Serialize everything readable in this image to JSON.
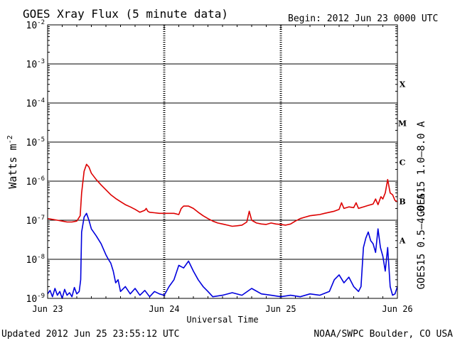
{
  "chart_data": {
    "type": "line",
    "title": "GOES Xray Flux (5 minute data)",
    "begin_label": "Begin:  2012 Jun 23 0000 UTC",
    "xlabel": "Universal Time",
    "ylabel": "Watts m",
    "ylabel_sup": "-2",
    "y_scale": "log",
    "ylim": [
      1e-09,
      0.01
    ],
    "xlim": [
      0,
      72
    ],
    "y_ticks": [
      {
        "base": "10",
        "exp": "-2"
      },
      {
        "base": "10",
        "exp": "-3"
      },
      {
        "base": "10",
        "exp": "-4"
      },
      {
        "base": "10",
        "exp": "-5"
      },
      {
        "base": "10",
        "exp": "-6"
      },
      {
        "base": "10",
        "exp": "-7"
      },
      {
        "base": "10",
        "exp": "-8"
      },
      {
        "base": "10",
        "exp": "-9"
      }
    ],
    "x_ticks": [
      {
        "label": "Jun 23",
        "hours": 0
      },
      {
        "label": "Jun 24",
        "hours": 24
      },
      {
        "label": "Jun 25",
        "hours": 48
      },
      {
        "label": "Jun 26",
        "hours": 72
      }
    ],
    "flare_classes": [
      {
        "label": "X",
        "level": 0.0001
      },
      {
        "label": "M",
        "level": 1e-05
      },
      {
        "label": "C",
        "level": 1e-06
      },
      {
        "label": "B",
        "level": 1e-07
      },
      {
        "label": "A",
        "level": 1e-08
      }
    ],
    "series": [
      {
        "name": "GOES15 1.0–8.0 A",
        "color": "#dd0000",
        "points": [
          [
            0,
            1.1e-07
          ],
          [
            1,
            1.05e-07
          ],
          [
            2,
            1e-07
          ],
          [
            3,
            9.5e-08
          ],
          [
            4,
            9e-08
          ],
          [
            5,
            9e-08
          ],
          [
            6,
            9.5e-08
          ],
          [
            6.7,
            1.3e-07
          ],
          [
            7,
            5e-07
          ],
          [
            7.5,
            1.8e-06
          ],
          [
            8,
            2.7e-06
          ],
          [
            8.5,
            2.3e-06
          ],
          [
            9,
            1.6e-06
          ],
          [
            10,
            1.1e-06
          ],
          [
            11,
            8e-07
          ],
          [
            12,
            6e-07
          ],
          [
            13,
            4.5e-07
          ],
          [
            14,
            3.6e-07
          ],
          [
            15,
            3e-07
          ],
          [
            16,
            2.5e-07
          ],
          [
            17,
            2.2e-07
          ],
          [
            18,
            1.9e-07
          ],
          [
            19,
            1.6e-07
          ],
          [
            20,
            1.8e-07
          ],
          [
            20.3,
            2e-07
          ],
          [
            20.6,
            1.7e-07
          ],
          [
            21,
            1.6e-07
          ],
          [
            22,
            1.55e-07
          ],
          [
            23,
            1.5e-07
          ],
          [
            24,
            1.5e-07
          ],
          [
            25,
            1.5e-07
          ],
          [
            26,
            1.5e-07
          ],
          [
            27,
            1.4e-07
          ],
          [
            27.5,
            2e-07
          ],
          [
            28,
            2.3e-07
          ],
          [
            29,
            2.3e-07
          ],
          [
            30,
            2e-07
          ],
          [
            31,
            1.6e-07
          ],
          [
            32,
            1.3e-07
          ],
          [
            33,
            1.1e-07
          ],
          [
            34,
            9.5e-08
          ],
          [
            35,
            8.5e-08
          ],
          [
            36,
            8e-08
          ],
          [
            37,
            7.5e-08
          ],
          [
            38,
            7e-08
          ],
          [
            39,
            7.2e-08
          ],
          [
            40,
            7.5e-08
          ],
          [
            41,
            9e-08
          ],
          [
            41.5,
            1.7e-07
          ],
          [
            42,
            1e-07
          ],
          [
            43,
            8.5e-08
          ],
          [
            44,
            8e-08
          ],
          [
            45,
            7.8e-08
          ],
          [
            46,
            8.5e-08
          ],
          [
            47,
            8e-08
          ],
          [
            48,
            7.8e-08
          ],
          [
            49,
            7.5e-08
          ],
          [
            50,
            8e-08
          ],
          [
            51,
            9.5e-08
          ],
          [
            52,
            1.1e-07
          ],
          [
            53,
            1.2e-07
          ],
          [
            54,
            1.3e-07
          ],
          [
            55,
            1.35e-07
          ],
          [
            56,
            1.4e-07
          ],
          [
            57,
            1.5e-07
          ],
          [
            58,
            1.6e-07
          ],
          [
            59,
            1.7e-07
          ],
          [
            60,
            1.9e-07
          ],
          [
            60.5,
            2.8e-07
          ],
          [
            61,
            2e-07
          ],
          [
            62,
            2.2e-07
          ],
          [
            63,
            2.1e-07
          ],
          [
            63.5,
            2.8e-07
          ],
          [
            64,
            2e-07
          ],
          [
            65,
            2.2e-07
          ],
          [
            66,
            2.4e-07
          ],
          [
            67,
            2.6e-07
          ],
          [
            67.5,
            3.5e-07
          ],
          [
            68,
            2.5e-07
          ],
          [
            68.6,
            4e-07
          ],
          [
            69,
            3.5e-07
          ],
          [
            69.5,
            5e-07
          ],
          [
            70,
            1.1e-06
          ],
          [
            70.5,
            5e-07
          ],
          [
            71,
            4.5e-07
          ],
          [
            71.5,
            3.2e-07
          ],
          [
            72,
            3e-07
          ]
        ]
      },
      {
        "name": "GOES15 0.5–4.0 A",
        "color": "#0000dd",
        "points": [
          [
            0,
            1.3e-09
          ],
          [
            0.5,
            1.6e-09
          ],
          [
            1,
            1.1e-09
          ],
          [
            1.5,
            1.8e-09
          ],
          [
            2,
            1.2e-09
          ],
          [
            2.5,
            1.5e-09
          ],
          [
            3,
            1e-09
          ],
          [
            3.5,
            1.7e-09
          ],
          [
            4,
            1.2e-09
          ],
          [
            4.5,
            1.4e-09
          ],
          [
            5,
            1.1e-09
          ],
          [
            5.5,
            1.9e-09
          ],
          [
            6,
            1.3e-09
          ],
          [
            6.5,
            1.5e-09
          ],
          [
            6.8,
            3e-09
          ],
          [
            7,
            5e-08
          ],
          [
            7.5,
            1.2e-07
          ],
          [
            8,
            1.5e-07
          ],
          [
            8.5,
            1e-07
          ],
          [
            9,
            6e-08
          ],
          [
            10,
            4e-08
          ],
          [
            11,
            2.5e-08
          ],
          [
            12,
            1.3e-08
          ],
          [
            12.5,
            1e-08
          ],
          [
            13,
            8e-09
          ],
          [
            13.5,
            5e-09
          ],
          [
            14,
            2.5e-09
          ],
          [
            14.5,
            3e-09
          ],
          [
            15,
            1.5e-09
          ],
          [
            16,
            2e-09
          ],
          [
            17,
            1.3e-09
          ],
          [
            18,
            1.8e-09
          ],
          [
            19,
            1.2e-09
          ],
          [
            20,
            1.6e-09
          ],
          [
            21,
            1.1e-09
          ],
          [
            22,
            1.5e-09
          ],
          [
            23,
            1.3e-09
          ],
          [
            24,
            1.2e-09
          ],
          [
            25,
            2e-09
          ],
          [
            26,
            3e-09
          ],
          [
            27,
            7e-09
          ],
          [
            28,
            6e-09
          ],
          [
            29,
            9e-09
          ],
          [
            30,
            5e-09
          ],
          [
            31,
            3e-09
          ],
          [
            32,
            2e-09
          ],
          [
            33,
            1.5e-09
          ],
          [
            34,
            1.1e-09
          ],
          [
            36,
            1.2e-09
          ],
          [
            38,
            1.4e-09
          ],
          [
            40,
            1.2e-09
          ],
          [
            42,
            1.8e-09
          ],
          [
            44,
            1.3e-09
          ],
          [
            46,
            1.2e-09
          ],
          [
            48,
            1.1e-09
          ],
          [
            50,
            1.2e-09
          ],
          [
            52,
            1.1e-09
          ],
          [
            54,
            1.3e-09
          ],
          [
            56,
            1.2e-09
          ],
          [
            58,
            1.5e-09
          ],
          [
            59,
            3e-09
          ],
          [
            60,
            4e-09
          ],
          [
            61,
            2.5e-09
          ],
          [
            62,
            3.5e-09
          ],
          [
            63,
            2e-09
          ],
          [
            64,
            1.5e-09
          ],
          [
            64.5,
            2e-09
          ],
          [
            65,
            2e-08
          ],
          [
            65.5,
            3.5e-08
          ],
          [
            66,
            5e-08
          ],
          [
            66.5,
            3e-08
          ],
          [
            67,
            2.5e-08
          ],
          [
            67.5,
            1.5e-08
          ],
          [
            68,
            6e-08
          ],
          [
            68.5,
            2e-08
          ],
          [
            69,
            1.2e-08
          ],
          [
            69.5,
            5e-09
          ],
          [
            70,
            2e-08
          ],
          [
            70.5,
            2e-09
          ],
          [
            71,
            1.2e-09
          ],
          [
            71.5,
            1.3e-09
          ],
          [
            72,
            2e-09
          ]
        ]
      }
    ]
  },
  "footer": {
    "updated": "Updated 2012 Jun 25 23:55:12 UTC",
    "credit": "NOAA/SWPC Boulder, CO USA"
  }
}
